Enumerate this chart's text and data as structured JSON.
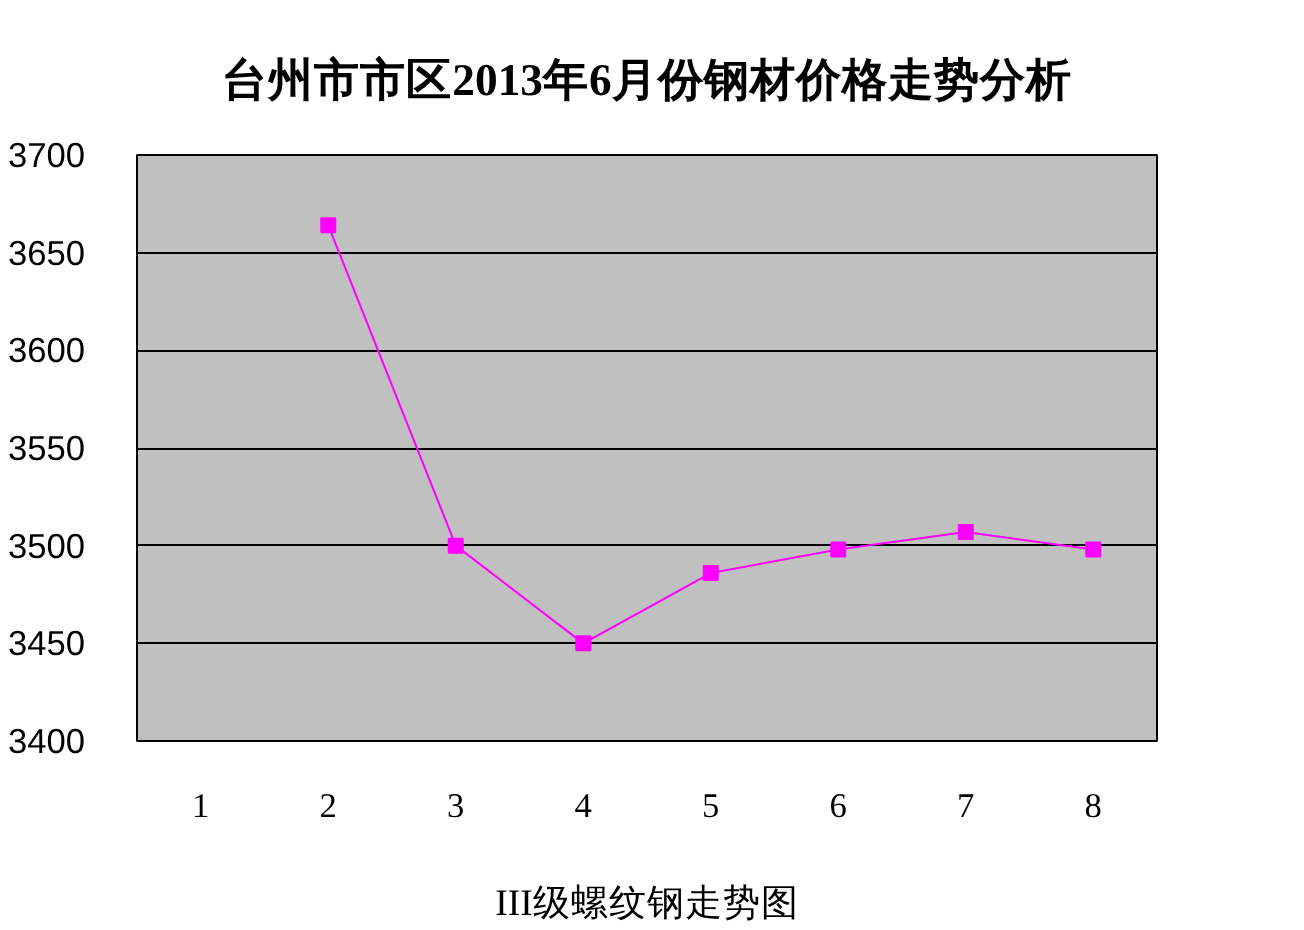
{
  "chart_data": {
    "type": "line",
    "title": "台州市市区2013年6月份钢材价格走势分析",
    "xlabel": "III级螺纹钢走势图",
    "categories": [
      "1",
      "2",
      "3",
      "4",
      "5",
      "6",
      "7",
      "8"
    ],
    "series": [
      {
        "color": "#ff00ff",
        "values": [
          null,
          3664,
          3500,
          3450,
          3486,
          3498,
          3507,
          3498
        ]
      }
    ],
    "ylim": [
      3400,
      3700
    ],
    "yticks": [
      3400,
      3450,
      3500,
      3550,
      3600,
      3650,
      3700
    ],
    "grid": "y",
    "marker": "square",
    "line_style": "solid"
  }
}
